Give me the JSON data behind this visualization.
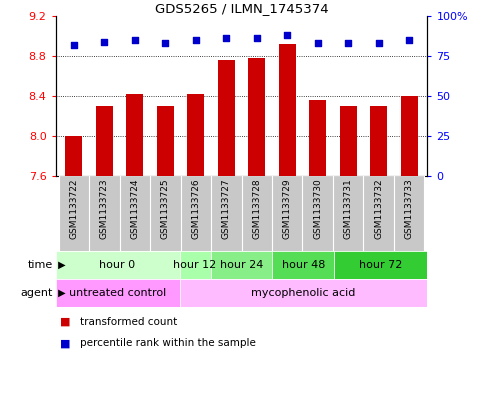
{
  "title": "GDS5265 / ILMN_1745374",
  "samples": [
    "GSM1133722",
    "GSM1133723",
    "GSM1133724",
    "GSM1133725",
    "GSM1133726",
    "GSM1133727",
    "GSM1133728",
    "GSM1133729",
    "GSM1133730",
    "GSM1133731",
    "GSM1133732",
    "GSM1133733"
  ],
  "bar_values": [
    8.0,
    8.3,
    8.42,
    8.3,
    8.42,
    8.76,
    8.78,
    8.92,
    8.36,
    8.3,
    8.3,
    8.4
  ],
  "bar_bottom": 7.6,
  "percentile_values": [
    82,
    84,
    85,
    83,
    85,
    86,
    86,
    88,
    83,
    83,
    83,
    85
  ],
  "bar_color": "#cc0000",
  "dot_color": "#0000cc",
  "ylim_left": [
    7.6,
    9.2
  ],
  "ylim_right": [
    0,
    100
  ],
  "yticks_left": [
    7.6,
    8.0,
    8.4,
    8.8,
    9.2
  ],
  "yticks_right": [
    0,
    25,
    50,
    75,
    100
  ],
  "grid_values": [
    8.0,
    8.4,
    8.8
  ],
  "time_groups": [
    {
      "label": "hour 0",
      "start": 0,
      "end": 4,
      "color": "#ccffcc"
    },
    {
      "label": "hour 12",
      "start": 4,
      "end": 5,
      "color": "#aaffaa"
    },
    {
      "label": "hour 24",
      "start": 5,
      "end": 7,
      "color": "#88ee88"
    },
    {
      "label": "hour 48",
      "start": 7,
      "end": 9,
      "color": "#55dd55"
    },
    {
      "label": "hour 72",
      "start": 9,
      "end": 12,
      "color": "#33cc33"
    }
  ],
  "agent_groups": [
    {
      "label": "untreated control",
      "start": 0,
      "end": 4,
      "color": "#ff99ff"
    },
    {
      "label": "mycophenolic acid",
      "start": 4,
      "end": 12,
      "color": "#ffbbff"
    }
  ],
  "legend_items": [
    {
      "label": "transformed count",
      "color": "#cc0000"
    },
    {
      "label": "percentile rank within the sample",
      "color": "#0000cc"
    }
  ],
  "background_color": "#ffffff",
  "plot_bg_color": "#ffffff",
  "sample_bg_color": "#c8c8c8"
}
